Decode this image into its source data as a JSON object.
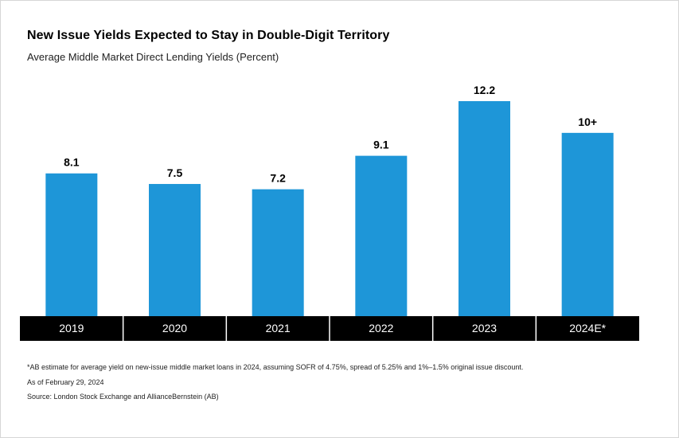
{
  "title": "New Issue Yields Expected to Stay in Double-Digit Territory",
  "subtitle": "Average Middle Market Direct Lending Yields (Percent)",
  "colors": {
    "bar": "#1e96d8",
    "axis_band": "#000000",
    "axis_text": "#ffffff"
  },
  "chart_data": {
    "type": "bar",
    "categories": [
      "2019",
      "2020",
      "2021",
      "2022",
      "2023",
      "2024E*"
    ],
    "values": [
      8.1,
      7.5,
      7.2,
      9.1,
      12.2,
      10.4
    ],
    "data_labels": [
      "8.1",
      "7.5",
      "7.2",
      "9.1",
      "12.2",
      "10+"
    ],
    "ylim": [
      0,
      13
    ],
    "grid": false,
    "legend": "none"
  },
  "footnote": "*AB estimate for average yield on new-issue middle market loans in 2024, assuming SOFR of 4.75%, spread of 5.25% and 1%–1.5% original issue discount.",
  "as_of": "As of February 29, 2024",
  "source": "Source: London Stock Exchange and AllianceBernstein (AB)"
}
